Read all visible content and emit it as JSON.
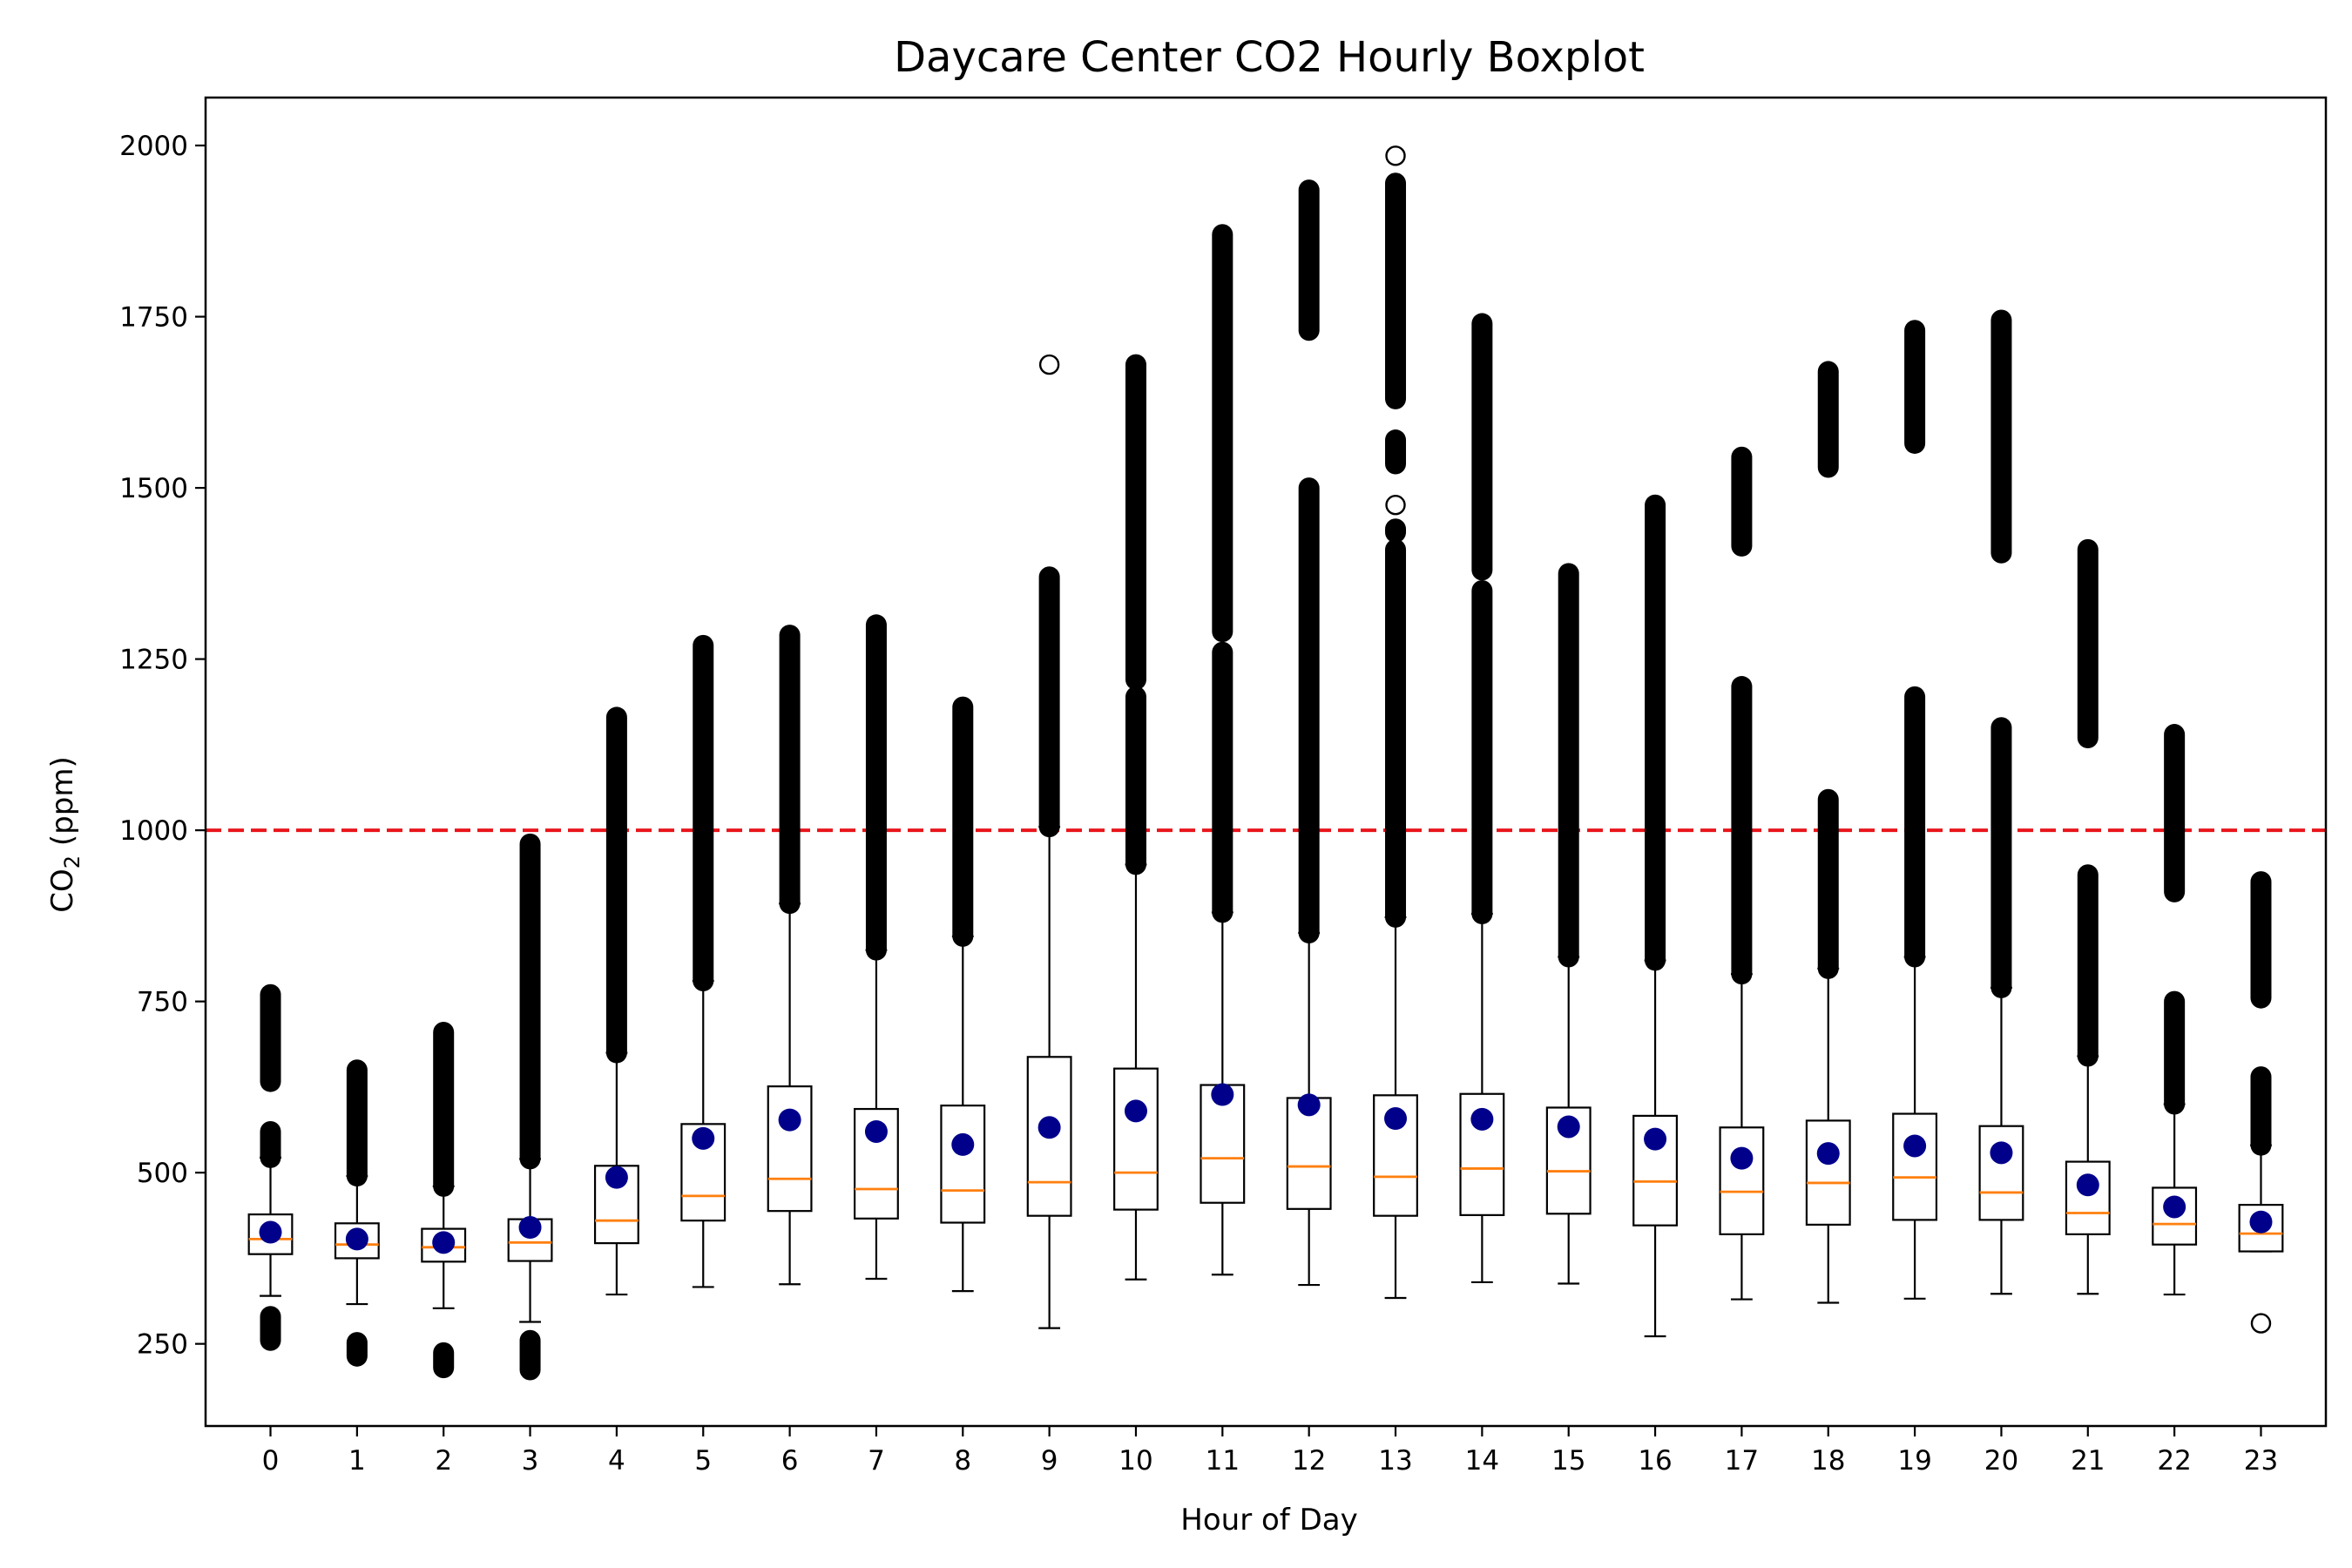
{
  "chart_data": {
    "type": "box",
    "title": "Daycare Center CO2 Hourly Boxplot",
    "xlabel": "Hour of Day",
    "ylabel": {
      "prefix": "CO",
      "subscript": "2",
      "suffix": " (ppm)"
    },
    "categories": [
      "0",
      "1",
      "2",
      "3",
      "4",
      "5",
      "6",
      "7",
      "8",
      "9",
      "10",
      "11",
      "12",
      "13",
      "14",
      "15",
      "16",
      "17",
      "18",
      "19",
      "20",
      "21",
      "22",
      "23"
    ],
    "ylim": [
      130,
      2070
    ],
    "yticks": [
      250,
      500,
      750,
      1000,
      1250,
      1500,
      1750,
      2000
    ],
    "threshold": {
      "value": 1000,
      "color": "#e8151b",
      "style": "dashed"
    },
    "colors": {
      "box": "#000000",
      "median": "#ff7f0e",
      "mean": "#00008b",
      "flier": "#000000"
    },
    "grid": false,
    "boxes": [
      {
        "x": "0",
        "whislo": 320,
        "q1": 381,
        "med": 403,
        "q3": 439,
        "whishi": 522,
        "mean": 413,
        "fliers": [
          [
            255,
            290
          ],
          [
            522,
            560
          ],
          [
            633,
            760
          ]
        ]
      },
      {
        "x": "1",
        "whislo": 308,
        "q1": 375,
        "med": 395,
        "q3": 426,
        "whishi": 495,
        "mean": 403,
        "fliers": [
          [
            232,
            252
          ],
          [
            495,
            650
          ]
        ]
      },
      {
        "x": "2",
        "whislo": 302,
        "q1": 370,
        "med": 391,
        "q3": 418,
        "whishi": 480,
        "mean": 398,
        "fliers": [
          [
            215,
            237
          ],
          [
            480,
            705
          ]
        ]
      },
      {
        "x": "3",
        "whislo": 282,
        "q1": 371,
        "med": 398,
        "q3": 432,
        "whishi": 520,
        "mean": 420,
        "fliers": [
          [
            212,
            255
          ],
          [
            520,
            980
          ]
        ]
      },
      {
        "x": "4",
        "whislo": 322,
        "q1": 397,
        "med": 430,
        "q3": 510,
        "whishi": 675,
        "mean": 493,
        "fliers": [
          [
            675,
            1165
          ]
        ]
      },
      {
        "x": "5",
        "whislo": 333,
        "q1": 430,
        "med": 466,
        "q3": 571,
        "whishi": 780,
        "mean": 550,
        "fliers": [
          [
            780,
            1270
          ]
        ]
      },
      {
        "x": "6",
        "whislo": 337,
        "q1": 444,
        "med": 491,
        "q3": 626,
        "whishi": 893,
        "mean": 577,
        "fliers": [
          [
            893,
            1285
          ]
        ]
      },
      {
        "x": "7",
        "whislo": 345,
        "q1": 433,
        "med": 476,
        "q3": 593,
        "whishi": 825,
        "mean": 560,
        "fliers": [
          [
            825,
            1300
          ]
        ]
      },
      {
        "x": "8",
        "whislo": 327,
        "q1": 427,
        "med": 474,
        "q3": 598,
        "whishi": 845,
        "mean": 541,
        "fliers": [
          [
            845,
            1180
          ]
        ]
      },
      {
        "x": "9",
        "whislo": 273,
        "q1": 437,
        "med": 486,
        "q3": 669,
        "whishi": 1005,
        "mean": 566,
        "fliers": [
          [
            1005,
            1370
          ],
          [
            1680,
            1680
          ]
        ]
      },
      {
        "x": "10",
        "whislo": 344,
        "q1": 446,
        "med": 500,
        "q3": 652,
        "whishi": 950,
        "mean": 590,
        "fliers": [
          [
            950,
            1195
          ],
          [
            1220,
            1680
          ]
        ]
      },
      {
        "x": "11",
        "whislo": 351,
        "q1": 456,
        "med": 521,
        "q3": 628,
        "whishi": 880,
        "mean": 614,
        "fliers": [
          [
            880,
            1260
          ],
          [
            1290,
            1870
          ]
        ]
      },
      {
        "x": "12",
        "whislo": 336,
        "q1": 447,
        "med": 509,
        "q3": 609,
        "whishi": 850,
        "mean": 599,
        "fliers": [
          [
            850,
            1500
          ],
          [
            1730,
            1935
          ]
        ]
      },
      {
        "x": "13",
        "whislo": 317,
        "q1": 437,
        "med": 494,
        "q3": 613,
        "whishi": 873,
        "mean": 579,
        "fliers": [
          [
            873,
            1410
          ],
          [
            1435,
            1440
          ],
          [
            1475,
            1475
          ],
          [
            1535,
            1570
          ],
          [
            1630,
            1945
          ],
          [
            1985,
            1985
          ]
        ]
      },
      {
        "x": "14",
        "whislo": 340,
        "q1": 438,
        "med": 506,
        "q3": 615,
        "whishi": 878,
        "mean": 578,
        "fliers": [
          [
            878,
            1350
          ],
          [
            1380,
            1740
          ]
        ]
      },
      {
        "x": "15",
        "whislo": 338,
        "q1": 440,
        "med": 502,
        "q3": 595,
        "whishi": 815,
        "mean": 567,
        "fliers": [
          [
            815,
            1375
          ]
        ]
      },
      {
        "x": "16",
        "whislo": 261,
        "q1": 423,
        "med": 487,
        "q3": 583,
        "whishi": 810,
        "mean": 549,
        "fliers": [
          [
            810,
            1475
          ]
        ]
      },
      {
        "x": "17",
        "whislo": 315,
        "q1": 410,
        "med": 472,
        "q3": 566,
        "whishi": 790,
        "mean": 521,
        "fliers": [
          [
            790,
            1210
          ],
          [
            1415,
            1545
          ]
        ]
      },
      {
        "x": "18",
        "whislo": 310,
        "q1": 424,
        "med": 485,
        "q3": 576,
        "whishi": 798,
        "mean": 528,
        "fliers": [
          [
            798,
            1045
          ],
          [
            1530,
            1670
          ]
        ]
      },
      {
        "x": "19",
        "whislo": 316,
        "q1": 431,
        "med": 493,
        "q3": 586,
        "whishi": 815,
        "mean": 539,
        "fliers": [
          [
            815,
            1195
          ],
          [
            1565,
            1730
          ]
        ]
      },
      {
        "x": "20",
        "whislo": 323,
        "q1": 431,
        "med": 471,
        "q3": 568,
        "whishi": 770,
        "mean": 529,
        "fliers": [
          [
            770,
            1150
          ],
          [
            1405,
            1745
          ]
        ]
      },
      {
        "x": "21",
        "whislo": 323,
        "q1": 410,
        "med": 441,
        "q3": 516,
        "whishi": 670,
        "mean": 482,
        "fliers": [
          [
            670,
            935
          ],
          [
            1135,
            1410
          ]
        ]
      },
      {
        "x": "22",
        "whislo": 322,
        "q1": 395,
        "med": 425,
        "q3": 478,
        "whishi": 600,
        "mean": 450,
        "fliers": [
          [
            600,
            750
          ],
          [
            910,
            1140
          ]
        ]
      },
      {
        "x": "23",
        "whislo": 385,
        "q1": 385,
        "med": 411,
        "q3": 453,
        "whishi": 540,
        "mean": 428,
        "fliers": [
          [
            280,
            280
          ],
          [
            540,
            640
          ],
          [
            755,
            925
          ]
        ]
      }
    ]
  }
}
